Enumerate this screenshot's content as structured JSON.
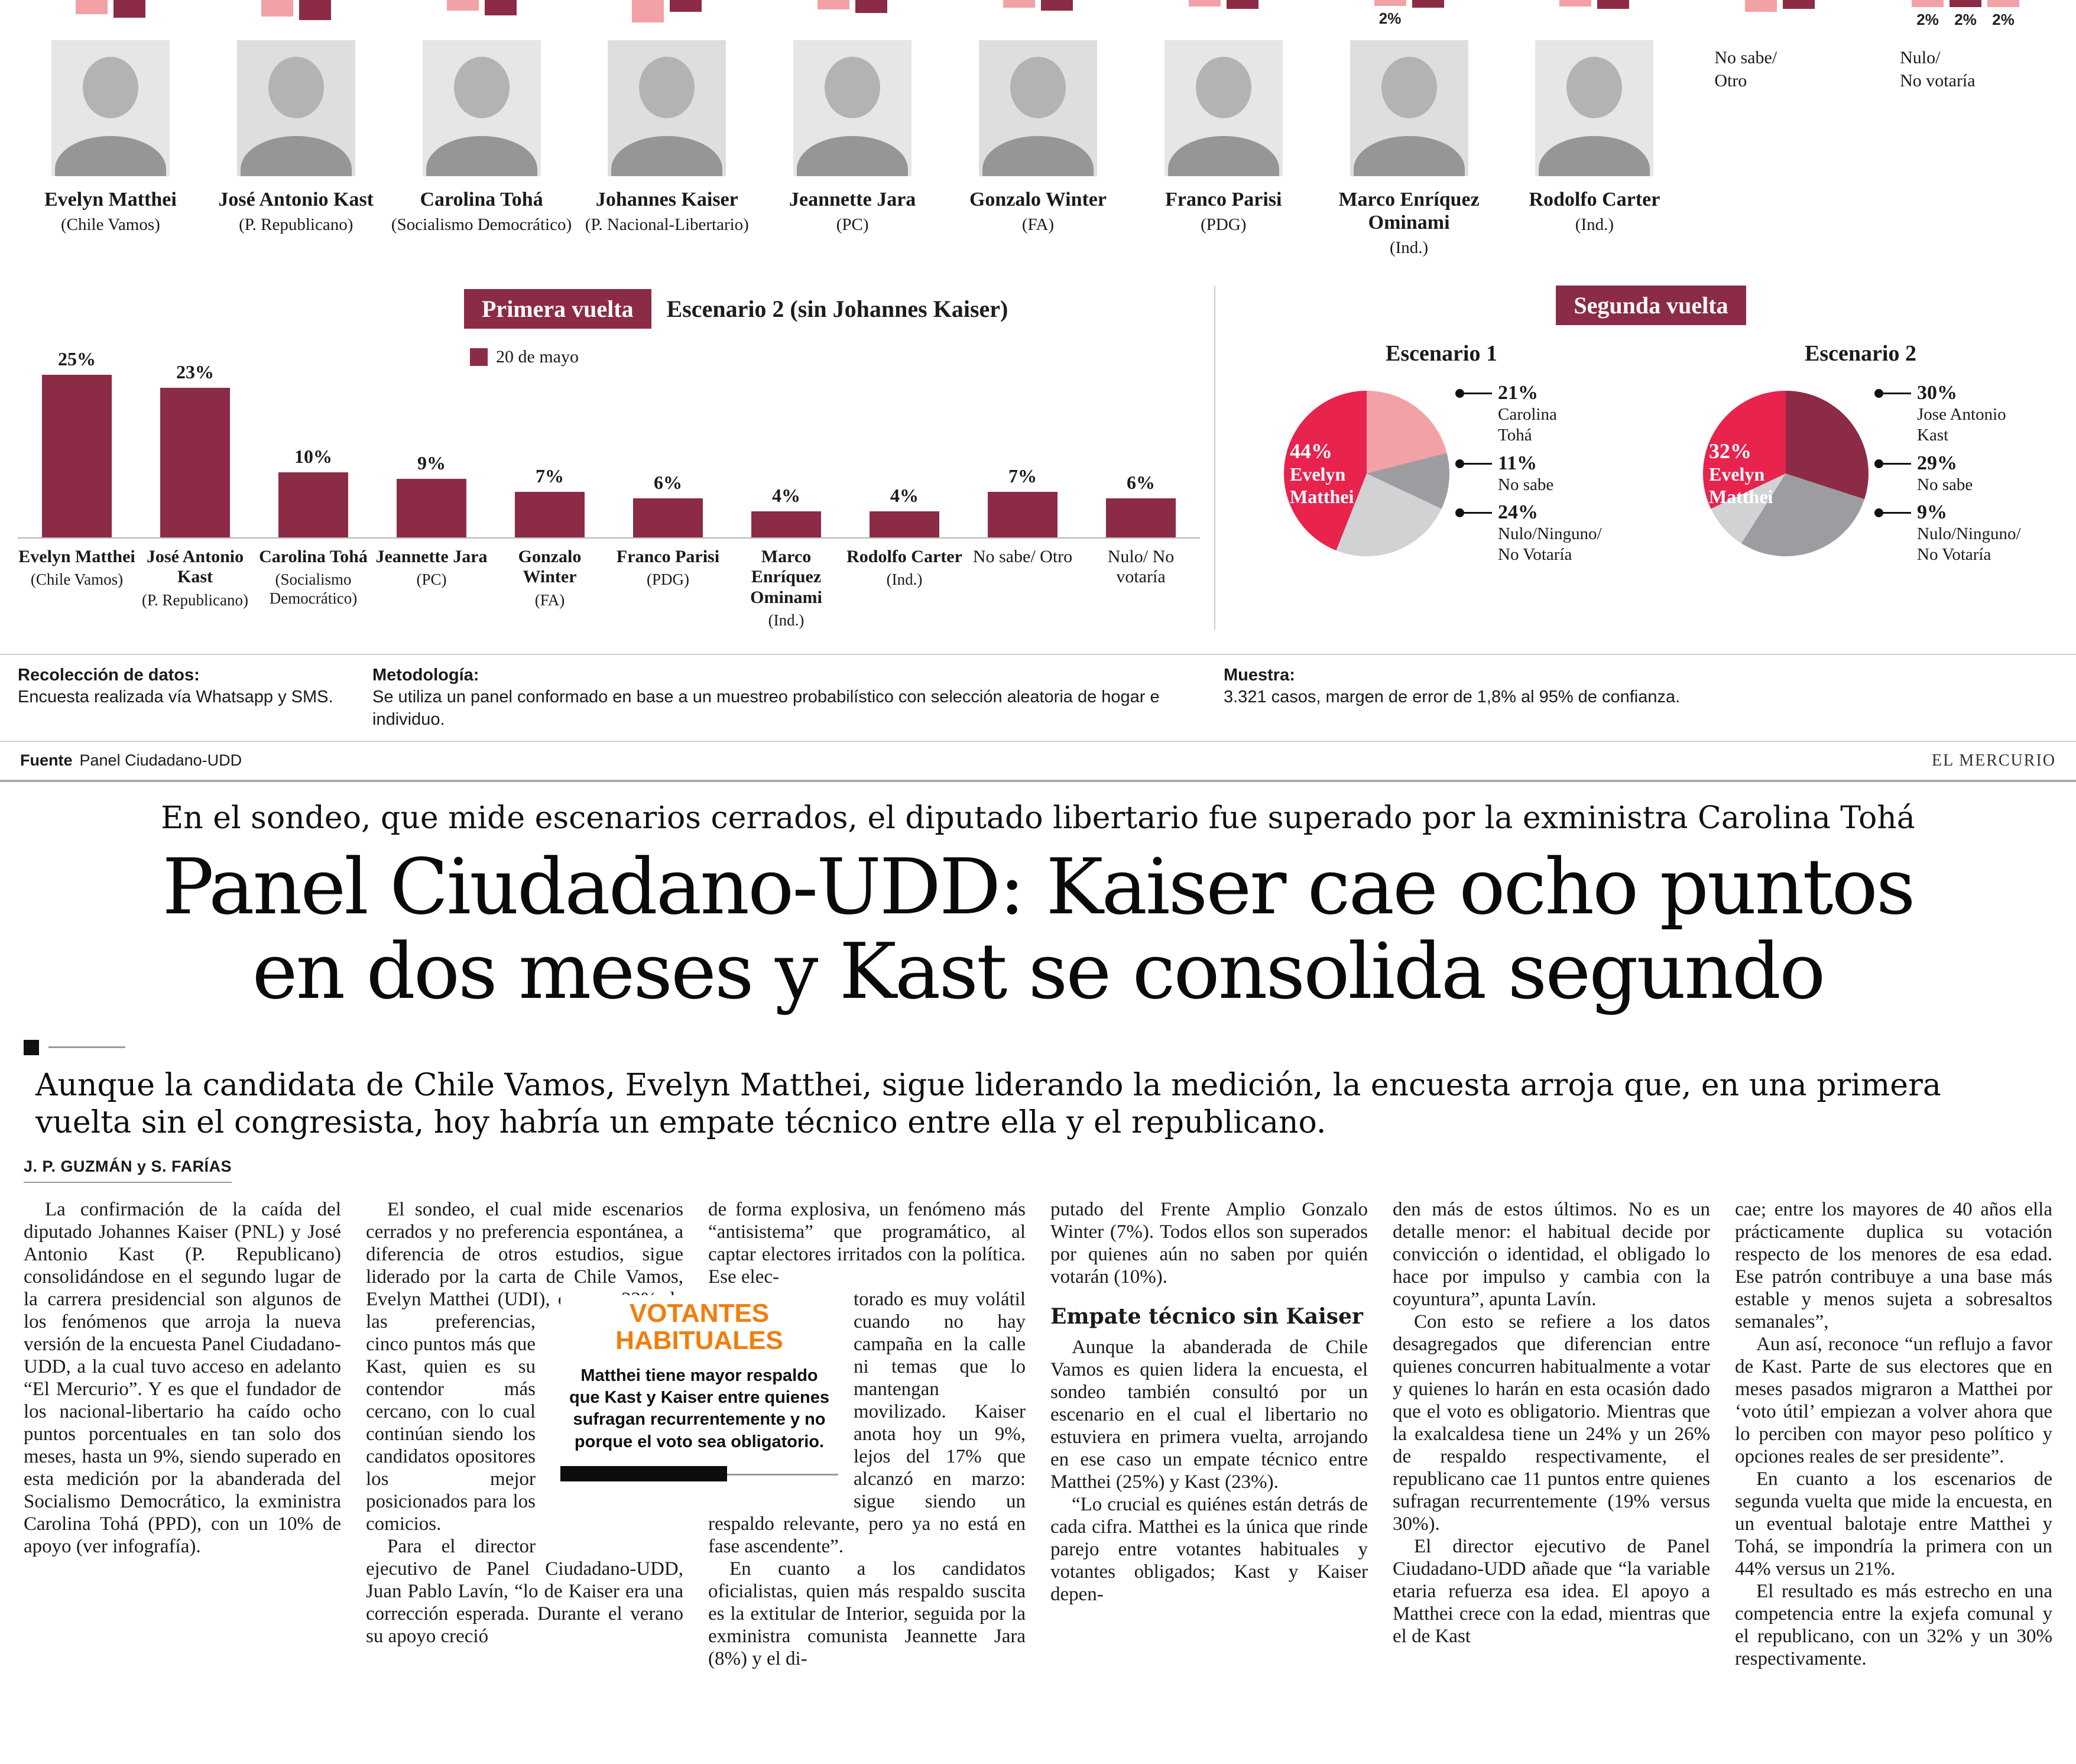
{
  "colors": {
    "maroon": "#8c2b45",
    "pink": "#f2a1a7",
    "crimson": "#e8234e",
    "orange": "#f07e0c",
    "gray_slice": "#9d9da1",
    "light_slice": "#d0d2d4"
  },
  "infographic": {
    "top_strip": {
      "groups": [
        {
          "bars": [
            {
              "c": "pink",
              "h": 24
            },
            {
              "c": "maroon",
              "h": 30
            }
          ]
        },
        {
          "bars": [
            {
              "c": "pink",
              "h": 28
            },
            {
              "c": "maroon",
              "h": 34
            }
          ]
        },
        {
          "bars": [
            {
              "c": "pink",
              "h": 18
            },
            {
              "c": "maroon",
              "h": 26
            }
          ]
        },
        {
          "bars": [
            {
              "c": "pink",
              "h": 38
            },
            {
              "c": "maroon",
              "h": 20
            }
          ]
        },
        {
          "bars": [
            {
              "c": "pink",
              "h": 16
            },
            {
              "c": "maroon",
              "h": 22
            }
          ]
        },
        {
          "bars": [
            {
              "c": "pink",
              "h": 13
            },
            {
              "c": "maroon",
              "h": 18
            }
          ]
        },
        {
          "bars": [
            {
              "c": "pink",
              "h": 11
            },
            {
              "c": "maroon",
              "h": 15
            }
          ]
        },
        {
          "bars": [
            {
              "c": "pink",
              "h": 10,
              "label": "2%"
            },
            {
              "c": "maroon",
              "h": 13
            }
          ]
        },
        {
          "bars": [
            {
              "c": "pink",
              "h": 11
            },
            {
              "c": "maroon",
              "h": 15
            }
          ]
        },
        {
          "bars": [
            {
              "c": "pink",
              "h": 20
            },
            {
              "c": "maroon",
              "h": 15
            }
          ]
        },
        {
          "bars": [
            {
              "c": "pink",
              "h": 12,
              "label": "2%"
            },
            {
              "c": "maroon",
              "h": 12,
              "label": "2%"
            },
            {
              "c": "pink",
              "h": 12,
              "label": "2%"
            }
          ]
        }
      ]
    },
    "candidates": [
      {
        "name": "Evelyn Matthei",
        "party": "(Chile Vamos)"
      },
      {
        "name": "José Antonio Kast",
        "party": "(P. Republicano)"
      },
      {
        "name": "Carolina Tohá",
        "party": "(Socialismo Democrático)"
      },
      {
        "name": "Johannes Kaiser",
        "party": "(P. Nacional-Libertario)"
      },
      {
        "name": "Jeannette Jara",
        "party": "(PC)"
      },
      {
        "name": "Gonzalo Winter",
        "party": "(FA)"
      },
      {
        "name": "Franco Parisi",
        "party": "(PDG)"
      },
      {
        "name": "Marco Enríquez Ominami",
        "party": "(Ind.)"
      },
      {
        "name": "Rodolfo Carter",
        "party": "(Ind.)"
      }
    ],
    "extra_columns": [
      {
        "lines": [
          "No sabe/",
          "Otro"
        ]
      },
      {
        "lines": [
          "Nulo/",
          "No votaría"
        ]
      }
    ],
    "meta": [
      {
        "label": "Recolección de datos:",
        "text": "Encuesta realizada vía Whatsapp y SMS."
      },
      {
        "label": "Metodología:",
        "text": "Se utiliza un panel conformado en base a un muestreo probabilístico con selección aleatoria de hogar e individuo."
      },
      {
        "label": "Muestra:",
        "text": "3.321 casos, margen de error de 1,8% al 95% de confianza."
      }
    ],
    "fuente": {
      "label": "Fuente",
      "value": "Panel Ciudadano-UDD"
    },
    "brand": "EL MERCURIO"
  },
  "chart_data": [
    {
      "type": "bar",
      "title": "Primera vuelta",
      "subtitle": "Escenario 2 (sin Johannes Kaiser)",
      "legend": "20 de mayo",
      "unit": "%",
      "ylim": [
        0,
        25
      ],
      "bars": [
        {
          "name": "Evelyn Matthei",
          "party": "(Chile Vamos)",
          "value": 25
        },
        {
          "name": "José Antonio Kast",
          "party": "(P. Republicano)",
          "value": 23
        },
        {
          "name": "Carolina Tohá",
          "party": "(Socialismo Democrático)",
          "value": 10
        },
        {
          "name": "Jeannette Jara",
          "party": "(PC)",
          "value": 9
        },
        {
          "name": "Gonzalo Winter",
          "party": "(FA)",
          "value": 7
        },
        {
          "name": "Franco Parisi",
          "party": "(PDG)",
          "value": 6
        },
        {
          "name": "Marco Enríquez Ominami",
          "party": "(Ind.)",
          "value": 4
        },
        {
          "name": "Rodolfo Carter",
          "party": "(Ind.)",
          "value": 4
        },
        {
          "name": "No sabe/ Otro",
          "party": "",
          "value": 7,
          "plain": true
        },
        {
          "name": "Nulo/ No votaría",
          "party": "",
          "value": 6,
          "plain": true
        }
      ]
    },
    {
      "type": "pie",
      "title": "Segunda vuelta",
      "charts": [
        {
          "name": "Escenario 1",
          "inner": {
            "pct": "44%",
            "lines": [
              "Evelyn",
              "Matthei"
            ]
          },
          "slices": [
            {
              "label": "Carolina Tohá",
              "value": 21,
              "color": "#f2a1a7"
            },
            {
              "label": "No sabe",
              "value": 11,
              "color": "#9d9da1"
            },
            {
              "label": "Nulo/Ninguno/No Votaría",
              "value": 24,
              "color": "#d0d2d4"
            },
            {
              "label": "Evelyn Matthei",
              "value": 44,
              "color": "#e8234e"
            }
          ],
          "callouts": [
            {
              "pct": "21%",
              "lines": [
                "Carolina",
                "Tohá"
              ]
            },
            {
              "pct": "11%",
              "lines": [
                "No sabe"
              ]
            },
            {
              "pct": "24%",
              "lines": [
                "Nulo/Ninguno/",
                "No Votaría"
              ]
            }
          ]
        },
        {
          "name": "Escenario 2",
          "inner": {
            "pct": "32%",
            "lines": [
              "Evelyn",
              "Matthei"
            ]
          },
          "slices": [
            {
              "label": "Jose Antonio Kast",
              "value": 30,
              "color": "#8c2b45"
            },
            {
              "label": "No sabe",
              "value": 29,
              "color": "#9d9da1"
            },
            {
              "label": "Nulo/Ninguno/No Votaría",
              "value": 9,
              "color": "#d0d2d4"
            },
            {
              "label": "Evelyn Matthei",
              "value": 32,
              "color": "#e8234e"
            }
          ],
          "callouts": [
            {
              "pct": "30%",
              "lines": [
                "Jose Antonio",
                "Kast"
              ]
            },
            {
              "pct": "29%",
              "lines": [
                "No sabe"
              ]
            },
            {
              "pct": "9%",
              "lines": [
                "Nulo/Ninguno/",
                "No Votaría"
              ]
            }
          ]
        }
      ]
    }
  ],
  "headline": {
    "kicker": "En el sondeo, que mide escenarios cerrados, el diputado libertario fue superado por la exministra Carolina Tohá",
    "line1": "Panel Ciudadano-UDD: Kaiser cae ocho puntos",
    "line2": "en dos meses y Kast se consolida segundo",
    "deck": "Aunque la candidata de Chile Vamos, Evelyn Matthei, sigue liderando la medición, la encuesta arroja que, en una primera vuelta sin el congresista, hoy habría un empate técnico entre ella y el republicano."
  },
  "article": {
    "byline": "J. P. GUZMÁN y S. FARÍAS",
    "inset": {
      "title_lines": [
        "VOTANTES",
        "HABITUALES"
      ],
      "text": "Matthei tiene mayor respaldo que Kast y Kaiser entre quienes sufragan recurrentemente y no porque el voto sea obligatorio."
    },
    "columns": [
      {
        "blocks": [
          {
            "t": "p",
            "text": "La confirmación de la caída del diputado Johannes Kaiser (PNL) y José Antonio Kast (P. Republicano) consolidándose en el segundo lugar de la carrera presidencial son algunos de los fenómenos que arroja la nueva versión de la encuesta Panel Ciudadano-UDD, a la cual tuvo acceso en adelanto “El Mercurio”. Y es que el fundador de los nacional-libertario ha caído ocho puntos porcentuales en tan solo dos meses, hasta un 9%, siendo superado en esta medición por la abanderada del Socialismo Democrático, la exministra Carolina Tohá (PPD), con un 10% de apoyo (ver infografía)."
          }
        ]
      },
      {
        "blocks": [
          {
            "t": "wrap",
            "pre": "El sondeo, el cual mide escenarios cerrados y no preferencia espontánea, a diferencia de otros estudios, sigue liderado por la carta de Chile Vamos, Evelyn Matthei (UDI), con un 22% de las preferencias,",
            "post": "cinco puntos más que Kast, quien es su contendor más cercano, con lo cual continúan siendo los candidatos opositores los mejor posicionados para los comicios."
          },
          {
            "t": "p",
            "text": "Para el director ejecutivo de Panel Ciudadano-UDD, Juan Pablo Lavín, “lo de Kaiser era una corrección esperada. Durante el verano su apoyo creció"
          }
        ]
      },
      {
        "blocks": [
          {
            "t": "pc",
            "text": "de forma explosiva, un fenómeno más “antisistema” que programático, al captar electores irritados con la política. Ese elec-"
          },
          {
            "t": "inset"
          },
          {
            "t": "pc",
            "text": "torado es muy volátil cuando no hay campaña en la calle ni temas que lo mantengan movilizado. Kaiser anota hoy un 9%, lejos del 17% que alcanzó en marzo: sigue siendo un respaldo relevante, pero ya no está en fase ascendente”."
          },
          {
            "t": "p",
            "text": "En cuanto a los candidatos oficialistas, quien más respaldo suscita es la extitular de Interior, seguida por la exministra comunista Jeannette Jara (8%) y el di-"
          }
        ]
      },
      {
        "blocks": [
          {
            "t": "pc",
            "text": "putado del Frente Amplio Gonzalo Winter (7%). Todos ellos son superados por quienes aún no saben por quién votarán (10%)."
          },
          {
            "t": "h",
            "text": "Empate técnico sin Kaiser"
          },
          {
            "t": "p",
            "text": "Aunque la abanderada de Chile Vamos es quien lidera la encuesta, el sondeo también consultó por un escenario en el cual el libertario no estuviera en primera vuelta, arrojando en ese caso un empate técnico entre Matthei (25%) y Kast (23%)."
          },
          {
            "t": "p",
            "text": "“Lo crucial es quiénes están detrás de cada cifra. Matthei es la única que rinde parejo entre votantes habituales y votantes obligados; Kast y Kaiser depen-"
          }
        ]
      },
      {
        "blocks": [
          {
            "t": "pc",
            "text": "den más de estos últimos. No es un detalle menor: el habitual decide por convicción o identidad, el obligado lo hace por impulso y cambia con la coyuntura”, apunta Lavín."
          },
          {
            "t": "p",
            "text": "Con esto se refiere a los datos desagregados que diferencian entre quienes concurren habitualmente a votar y quienes lo harán en esta ocasión dado que el voto es obligatorio. Mientras que la exalcaldesa tiene un 24% y un 26% de respaldo respectivamente, el republicano cae 11 puntos entre quienes sufragan recurrentemente (19% versus 30%)."
          },
          {
            "t": "p",
            "text": "El director ejecutivo de Panel Ciudadano-UDD añade que “la variable etaria refuerza esa idea. El apoyo a Matthei crece con la edad, mientras que el de Kast"
          }
        ]
      },
      {
        "blocks": [
          {
            "t": "pc",
            "text": "cae; entre los mayores de 40 años ella prácticamente duplica su votación respecto de los menores de esa edad. Ese patrón contribuye a una base más estable y menos sujeta a sobresaltos semanales”,"
          },
          {
            "t": "p",
            "text": "Aun así, reconoce “un reflujo a favor de Kast. Parte de sus electores que en meses pasados migraron a Matthei por ‘voto útil’ empiezan a volver ahora que lo perciben con mayor peso político y opciones reales de ser presidente”."
          },
          {
            "t": "p",
            "text": "En cuanto a los escenarios de segunda vuelta que mide la encuesta, en un eventual balotaje entre Matthei y Tohá, se impondría la primera con un 44% versus un 21%."
          },
          {
            "t": "p",
            "text": "El resultado es más estrecho en una competencia entre la exjefa comunal y el republicano, con un 32% y un 30% respectivamente."
          }
        ]
      }
    ]
  }
}
